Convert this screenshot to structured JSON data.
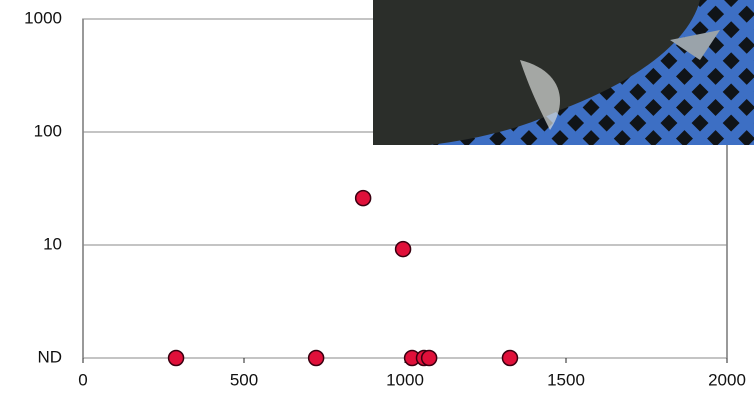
{
  "chart_data": {
    "type": "scatter",
    "log_y": true,
    "grid": true,
    "x": [
      289,
      724,
      870,
      994,
      1022,
      1059,
      1075,
      1326
    ],
    "series": [
      {
        "color": "#e0103a",
        "values": [
          1,
          1,
          26,
          9.2,
          1,
          1,
          1,
          1
        ]
      }
    ],
    "xlim": [
      0,
      2000
    ],
    "xticks": [
      0,
      500,
      1000,
      1500,
      2000
    ],
    "ylim": [
      1,
      1000
    ],
    "yticks": [
      {
        "value": 1,
        "label": "ND"
      },
      10,
      100,
      1000
    ]
  }
}
